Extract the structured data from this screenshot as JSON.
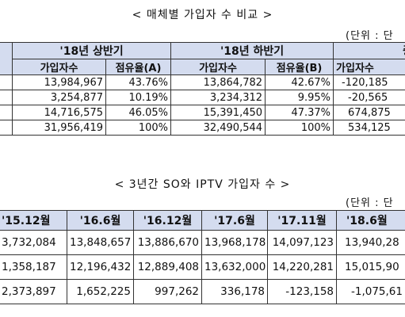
{
  "table1": {
    "title": "< 매체별 가입자 수 비교 >",
    "unit": "(단위 : 단",
    "periods": [
      "'18년 상반기",
      "'18년 하반기",
      "증"
    ],
    "subheaders": [
      "가입자수",
      "점유율(A)",
      "가입자수",
      "점유율(B)",
      "가입자수"
    ],
    "rows": [
      [
        "13,984,967",
        "43.76%",
        "13,864,782",
        "42.67%",
        "-120,185"
      ],
      [
        "3,254,877",
        "10.19%",
        "3,234,312",
        "9.95%",
        "-20,565"
      ],
      [
        "14,716,575",
        "46.05%",
        "15,391,450",
        "47.37%",
        "674,875"
      ],
      [
        "31,956,419",
        "100%",
        "32,490,544",
        "100%",
        "534,125"
      ]
    ]
  },
  "table2": {
    "title": "< 3년간 SO와 IPTV 가입자 수 >",
    "unit": "(단위 : 단",
    "headers": [
      "'15.12월",
      "'16.6월",
      "'16.12월",
      "'17.6월",
      "'17.11월",
      "'18.6월"
    ],
    "rows": [
      [
        "3,732,084",
        "13,848,657",
        "13,886,670",
        "13,968,178",
        "14,097,123",
        "13,940,28"
      ],
      [
        "1,358,187",
        "12,196,432",
        "12,889,408",
        "13,632,000",
        "14,220,281",
        "15,015,90"
      ],
      [
        "2,373,897",
        "1,652,225",
        "997,262",
        "336,178",
        "-123,158",
        "-1,075,61"
      ]
    ]
  }
}
